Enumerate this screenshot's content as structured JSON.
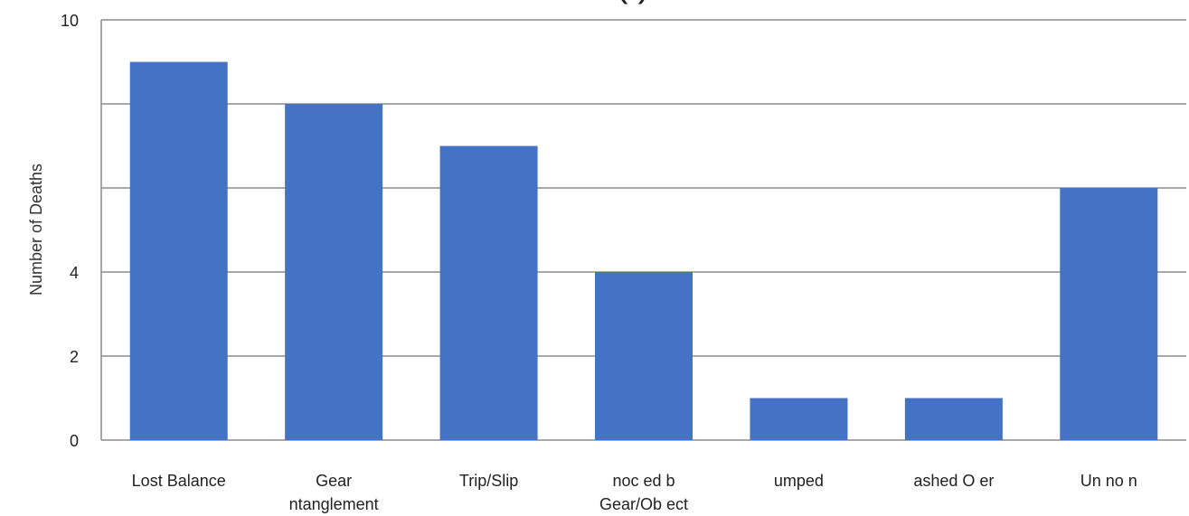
{
  "chart_data": {
    "type": "bar",
    "title": "(                )",
    "ylabel": "Number of Deaths",
    "xlabel": "",
    "ylim": [
      0,
      10
    ],
    "y_tick_labels": [
      {
        "value": 0,
        "label": "0"
      },
      {
        "value": 2,
        "label": "2"
      },
      {
        "value": 4,
        "label": "4"
      },
      {
        "value": 10,
        "label": "10"
      }
    ],
    "gridlines": [
      0,
      2,
      4,
      6,
      8,
      10
    ],
    "grid": true,
    "color": "#4472c4",
    "categories": [
      [
        "Lost Balance"
      ],
      [
        "Gear",
        "ntanglement"
      ],
      [
        "Trip/Slip"
      ],
      [
        "noc  ed b",
        "Gear/Ob ect"
      ],
      [
        "umped"
      ],
      [
        "ashed O  er"
      ],
      [
        "Un  no   n"
      ]
    ],
    "values": [
      9,
      8,
      7,
      4,
      1,
      1,
      6
    ]
  }
}
